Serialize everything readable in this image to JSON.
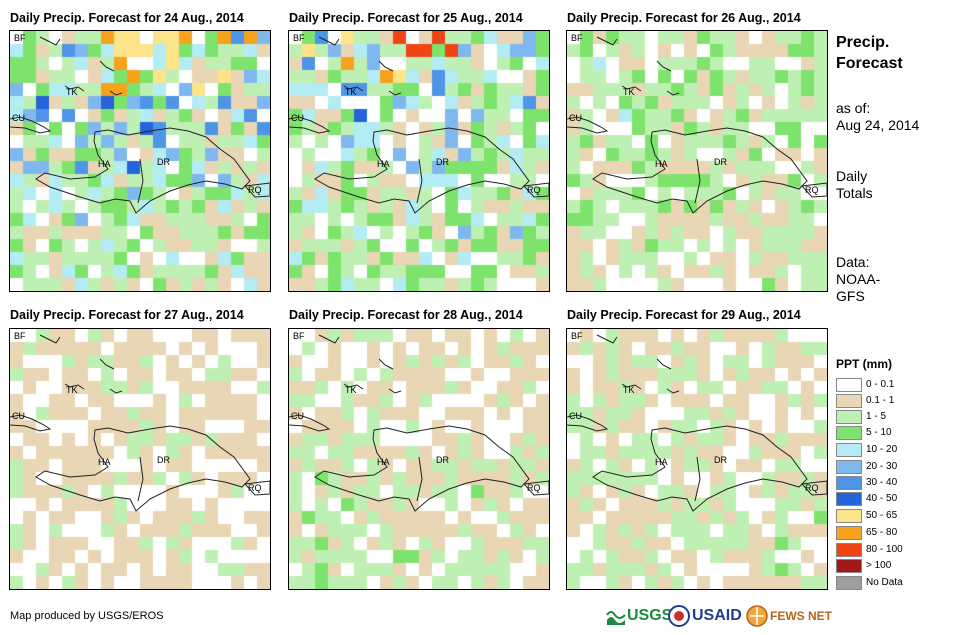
{
  "panels": [
    {
      "title": "Daily Precip. Forecast for 24 Aug., 2014"
    },
    {
      "title": "Daily Precip. Forecast for 25 Aug., 2014"
    },
    {
      "title": "Daily Precip. Forecast for 26 Aug., 2014"
    },
    {
      "title": "Daily Precip. Forecast for 27 Aug., 2014"
    },
    {
      "title": "Daily Precip. Forecast for 28 Aug., 2014"
    },
    {
      "title": "Daily Precip. Forecast for 29 Aug., 2014"
    }
  ],
  "map_labels": {
    "bf": "BF",
    "tk": "TK",
    "cu": "CU",
    "ha": "HA",
    "dr": "DR",
    "rq": "RQ"
  },
  "side": {
    "title_line1": "Precip.",
    "title_line2": "Forecast",
    "asof_line1": "as of:",
    "asof_line2": "Aug 24, 2014",
    "totals_line1": "Daily",
    "totals_line2": "Totals",
    "data_line1": "Data:",
    "data_line2": "NOAA-",
    "data_line3": "GFS"
  },
  "legend": {
    "title": "PPT (mm)",
    "items": [
      {
        "label": "0 - 0.1",
        "color": "#ffffff"
      },
      {
        "label": "0.1 - 1",
        "color": "#e8d6b4"
      },
      {
        "label": "1 - 5",
        "color": "#bff0b3"
      },
      {
        "label": "5 - 10",
        "color": "#7ee36c"
      },
      {
        "label": "10 - 20",
        "color": "#b4ecf4"
      },
      {
        "label": "20 - 30",
        "color": "#7fb8ee"
      },
      {
        "label": "30 - 40",
        "color": "#4e95e8"
      },
      {
        "label": "40 - 50",
        "color": "#2464d8"
      },
      {
        "label": "50 - 65",
        "color": "#fde38a"
      },
      {
        "label": "65 - 80",
        "color": "#f7a21c"
      },
      {
        "label": "80 - 100",
        "color": "#f04414"
      },
      {
        "label": "> 100",
        "color": "#a01818"
      },
      {
        "label": "No Data",
        "color": "#9e9e9e"
      }
    ]
  },
  "credit": "Map produced by USGS/EROS",
  "logos": {
    "usgs": "USGS",
    "usaid": "USAID",
    "fewsnet": "FEWS NET"
  }
}
